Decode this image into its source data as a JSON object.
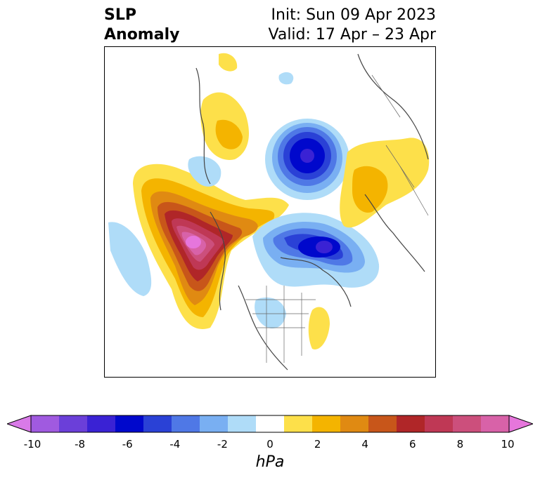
{
  "title": {
    "left_line1": "SLP",
    "left_line2": "Anomaly",
    "right_line1": "Init: Sun 09 Apr 2023",
    "right_line2": "Valid: 17 Apr – 23 Apr"
  },
  "colorbar": {
    "unit": "hPa",
    "tick_labels": [
      "-10",
      "-8",
      "-6",
      "-4",
      "-2",
      "0",
      "2",
      "4",
      "6",
      "8",
      "10"
    ],
    "colors": [
      "#d97ae8",
      "#a05ae0",
      "#6b3fd9",
      "#3a22d4",
      "#0008cc",
      "#2a41d6",
      "#4f78e6",
      "#79aff2",
      "#afdcf8",
      "#ffffff",
      "#fde04a",
      "#f4b400",
      "#e08a12",
      "#c8561a",
      "#b02628",
      "#bf3855",
      "#cc4f7c",
      "#d862a8",
      "#e676dc"
    ],
    "bounds": [
      -10,
      10
    ],
    "extend": "both"
  },
  "map": {
    "projection": "north-polar-stereographic",
    "features": [
      {
        "name": "SLP high anomaly over NE Pacific / Gulf of Alaska",
        "peak": "> 10 hPa"
      },
      {
        "name": "SLP low anomaly over Greenland / Baffin Bay",
        "peak": "< -6 hPa"
      },
      {
        "name": "SLP low anomaly over Barents Sea / Arctic",
        "peak": "< -6 hPa"
      },
      {
        "name": "SLP high anomaly over Siberia",
        "peak": "2-4 hPa"
      },
      {
        "name": "SLP high anomaly over Europe / Scandinavia",
        "peak": "2-4 hPa"
      },
      {
        "name": "SLP high anomaly over Western Atlantic",
        "peak": "2 hPa"
      }
    ]
  }
}
